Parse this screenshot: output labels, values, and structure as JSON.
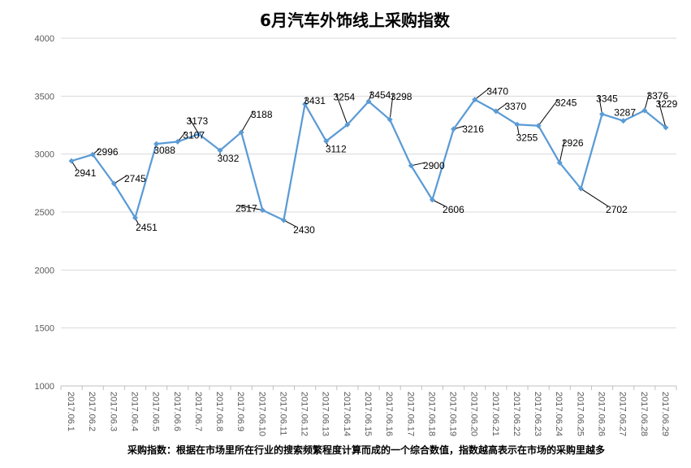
{
  "chart_data": {
    "type": "line",
    "title": "6月汽车外饰线上采购指数",
    "note": "采购指数：根据在市场里所在行业的搜索频繁程度计算而成的一个综合数值，指数越高表示在市场的采购里越多",
    "xlabel": "",
    "ylabel": "",
    "ylim": [
      1000,
      4000
    ],
    "yticks": [
      1000,
      1500,
      2000,
      2500,
      3000,
      3500,
      4000
    ],
    "grid": true,
    "legend": "none",
    "color": "#5b9bd5",
    "categories": [
      "2017.06.1",
      "2017.06.2",
      "2017.06.3",
      "2017.06.4",
      "2017.06.5",
      "2017.06.6",
      "2017.06.7",
      "2017.06.8",
      "2017.06.9",
      "2017.06.10",
      "2017.06.11",
      "2017.06.12",
      "2017.06.13",
      "2017.06.14",
      "2017.06.15",
      "2017.06.16",
      "2017.06.17",
      "2017.06.18",
      "2017.06.19",
      "2017.06.20",
      "2017.06.21",
      "2017.06.22",
      "2017.06.23",
      "2017.06.24",
      "2017.06.25",
      "2017.06.26",
      "2017.06.27",
      "2017.06.28",
      "2017.06.29"
    ],
    "values": [
      2941,
      2996,
      2745,
      2451,
      3088,
      3107,
      3173,
      3032,
      3188,
      2517,
      2430,
      3431,
      3112,
      3254,
      3454,
      3298,
      2900,
      2606,
      3216,
      3470,
      3370,
      3255,
      3245,
      2926,
      2702,
      3345,
      3287,
      3376,
      3229
    ]
  }
}
